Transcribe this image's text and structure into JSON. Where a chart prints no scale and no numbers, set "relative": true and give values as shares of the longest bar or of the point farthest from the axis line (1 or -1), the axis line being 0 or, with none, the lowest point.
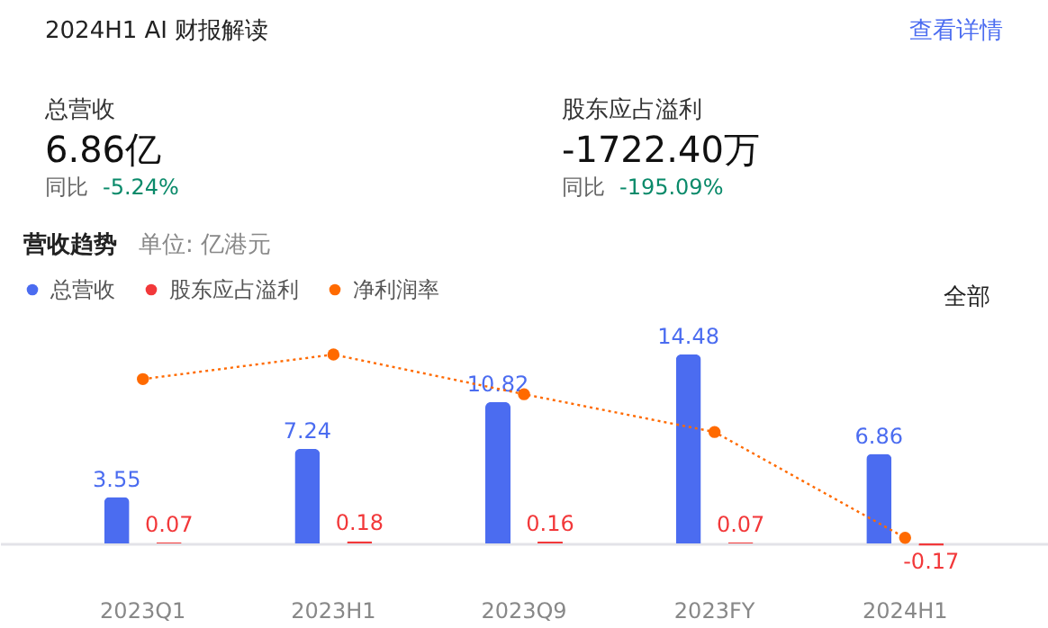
{
  "chart_data": [
    {
      "type": "other",
      "annotations": [
        "2024H1 AI 财报解读",
        "查看详情",
        "总营收",
        "6.86亿",
        "同比",
        "-5.24%",
        "股东应占溢利",
        "-1722.40万",
        "同比",
        "-195.09%"
      ]
    },
    {
      "type": "bar",
      "title": "营收趋势",
      "subtitle": "单位: 亿港元",
      "annotations": [
        "全部"
      ],
      "categories": [
        "2023Q1",
        "2023H1",
        "2023Q9",
        "2023FY",
        "2024H1"
      ],
      "series": [
        {
          "name": "总营收",
          "color": "#4b6cf0",
          "values": [
            3.55,
            7.24,
            10.82,
            14.48,
            6.86
          ]
        },
        {
          "name": "股东应占溢利",
          "color": "#f2383a",
          "values": [
            0.07,
            0.18,
            0.16,
            0.07,
            -0.17
          ]
        }
      ],
      "data_labels": true,
      "legend": "top left"
    },
    {
      "type": "line",
      "relative": true,
      "series": [
        {
          "name": "净利润率",
          "color": "#ff6a00",
          "values": [
            0.87,
            1.0,
            0.79,
            0.59,
            0.03
          ]
        }
      ],
      "legend": "top left",
      "marker": "circle",
      "line_style": "dotted"
    }
  ]
}
